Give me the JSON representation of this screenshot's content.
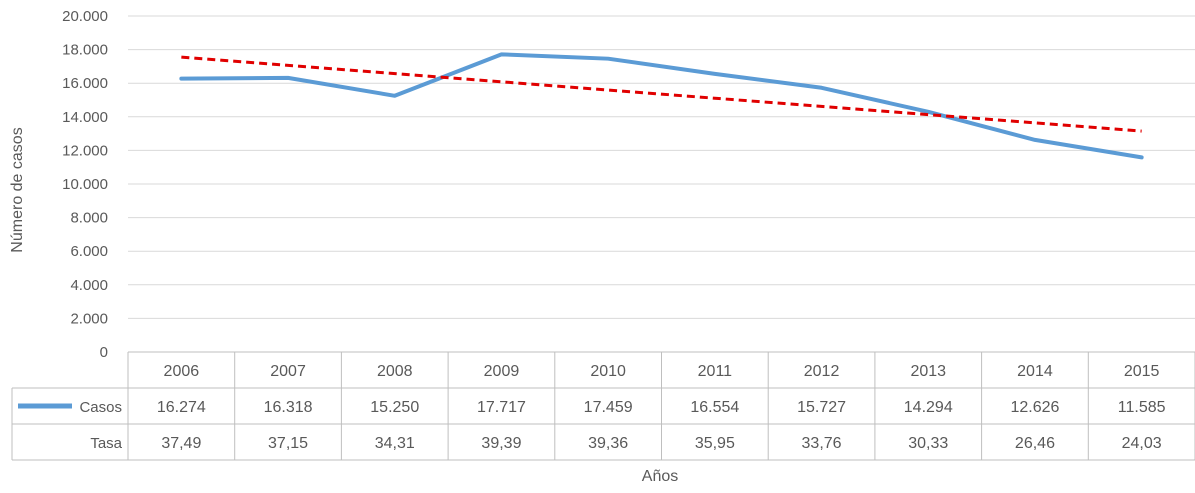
{
  "chart_data": {
    "type": "line",
    "xlabel": "Años",
    "ylabel": "Número de casos",
    "ylim": [
      0,
      20000
    ],
    "y_ticks": [
      "0",
      "2.000",
      "4.000",
      "6.000",
      "8.000",
      "10.000",
      "12.000",
      "14.000",
      "16.000",
      "18.000",
      "20.000"
    ],
    "y_tick_values": [
      0,
      2000,
      4000,
      6000,
      8000,
      10000,
      12000,
      14000,
      16000,
      18000,
      20000
    ],
    "grid": true,
    "categories": [
      "2006",
      "2007",
      "2008",
      "2009",
      "2010",
      "2011",
      "2012",
      "2013",
      "2014",
      "2015"
    ],
    "series": [
      {
        "name": "Casos",
        "color": "#5B9BD5",
        "values": [
          16274,
          16318,
          15250,
          17717,
          17459,
          16554,
          15727,
          14294,
          12626,
          11585
        ],
        "labels": [
          "16.274",
          "16.318",
          "15.250",
          "17.717",
          "17.459",
          "16.554",
          "15.727",
          "14.294",
          "12.626",
          "11.585"
        ]
      }
    ],
    "trendline": {
      "type": "linear",
      "color": "#E00000",
      "style": "dashed",
      "start_value": 17550,
      "end_value": 13150
    },
    "data_table": {
      "rows": [
        {
          "label": "Casos",
          "legend_key": true,
          "values": [
            "16.274",
            "16.318",
            "15.250",
            "17.717",
            "17.459",
            "16.554",
            "15.727",
            "14.294",
            "12.626",
            "11.585"
          ]
        },
        {
          "label": "Tasa",
          "legend_key": false,
          "values": [
            "37,49",
            "37,15",
            "34,31",
            "39,39",
            "39,36",
            "35,95",
            "33,76",
            "30,33",
            "26,46",
            "24,03"
          ]
        }
      ]
    }
  }
}
